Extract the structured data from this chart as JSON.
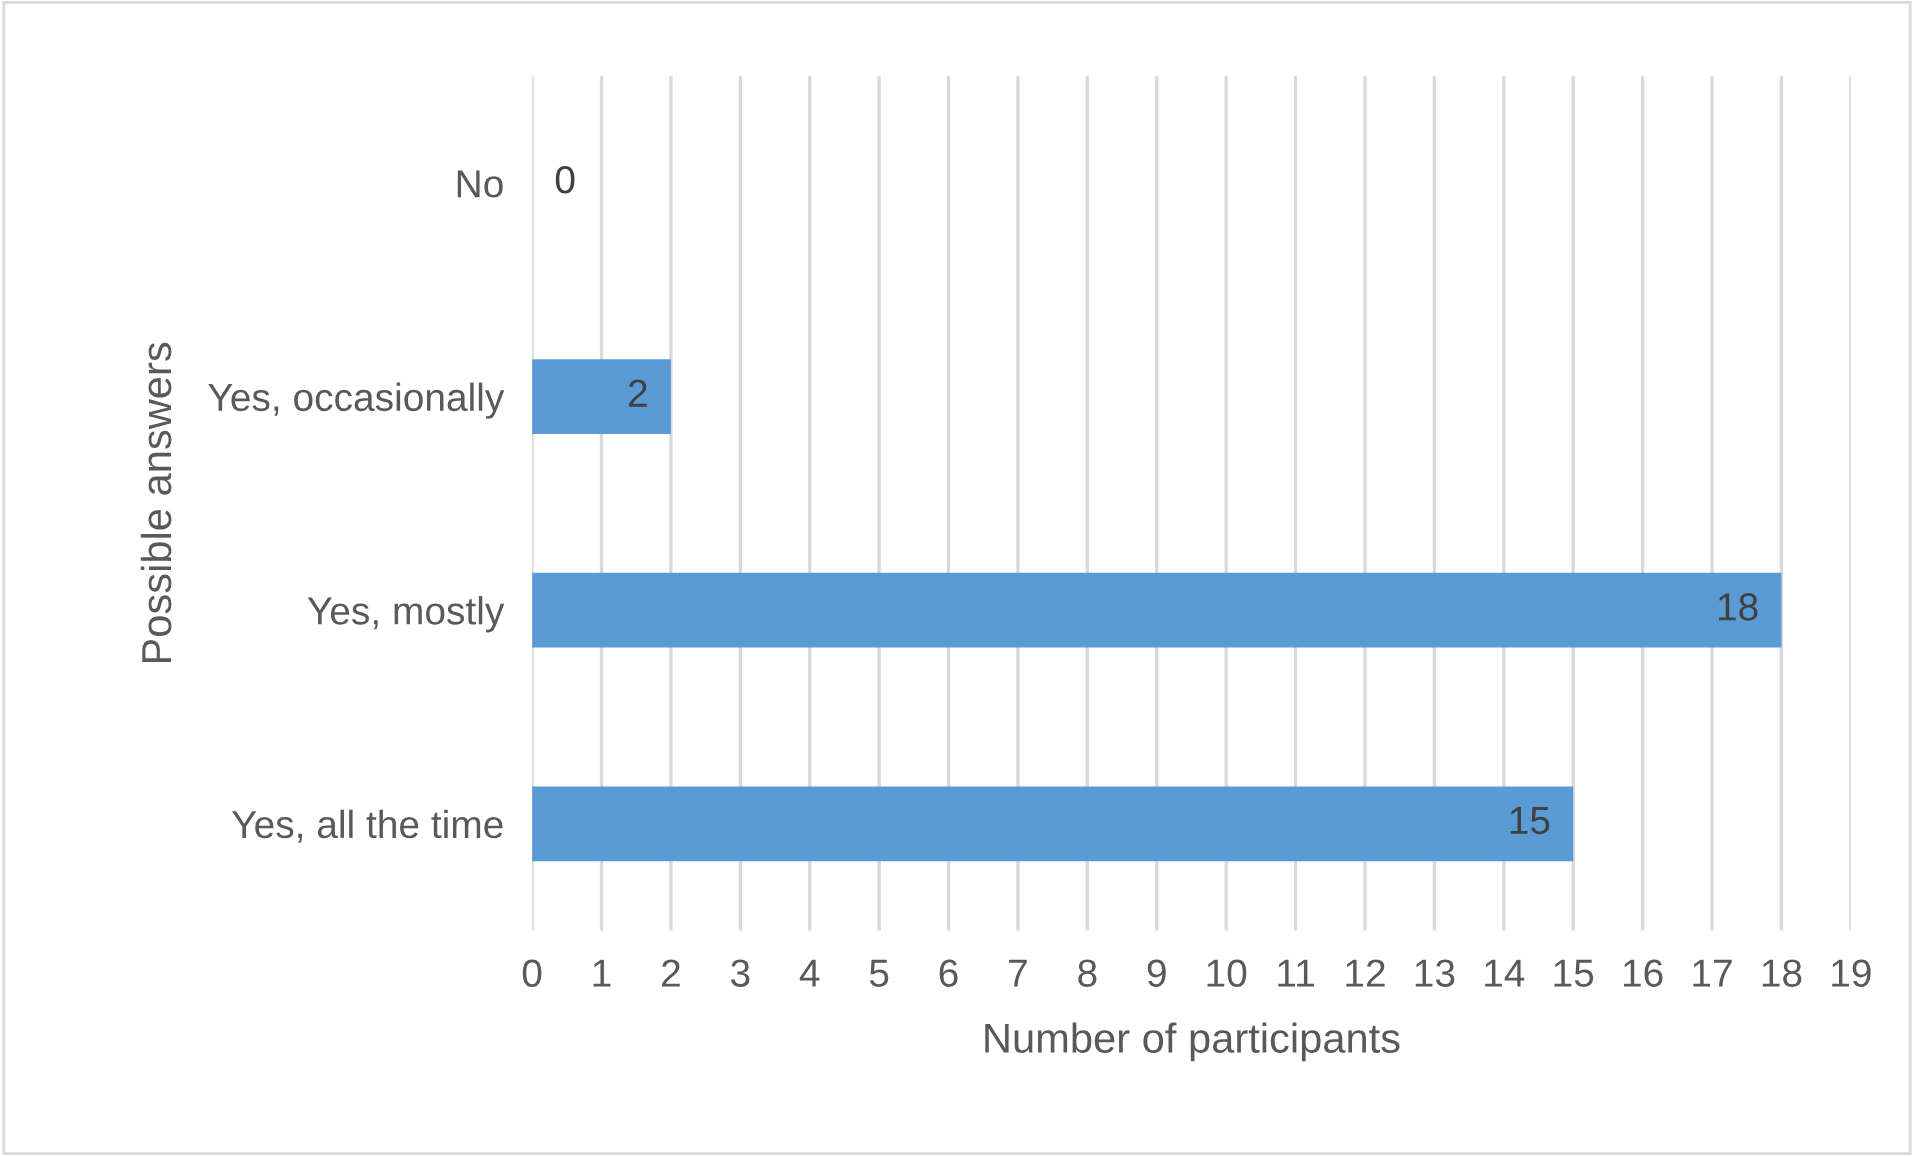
{
  "chart_data": {
    "type": "bar",
    "orientation": "horizontal",
    "xlabel": "Number of participants",
    "ylabel": "Possible answers",
    "categories": [
      "No",
      "Yes, occasionally",
      "Yes, mostly",
      "Yes, all the time"
    ],
    "values": [
      0,
      2,
      18,
      15
    ],
    "color": "#5b9bd5",
    "data_labels": true,
    "xlim": [
      0,
      19
    ],
    "xticks": [
      0,
      1,
      2,
      3,
      4,
      5,
      6,
      7,
      8,
      9,
      10,
      11,
      12,
      13,
      14,
      15,
      16,
      17,
      18,
      19
    ],
    "grid": "x"
  }
}
